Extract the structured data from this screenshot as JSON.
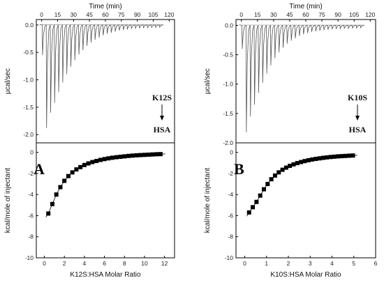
{
  "chart_data": [
    {
      "type": "line",
      "panel": "A",
      "title": "",
      "top": {
        "xlabel": "Time (min)",
        "ylabel": "µcal/sec",
        "xlim": [
          -5,
          125
        ],
        "ylim": [
          -2.15,
          0.1
        ],
        "xticks": [
          0,
          15,
          30,
          45,
          60,
          75,
          90,
          105,
          120
        ],
        "yticks": [
          0.0,
          -0.5,
          -1.0,
          -1.5,
          -2.0
        ],
        "ytick_labels": [
          "0.0",
          "-0.5",
          "-1.0",
          "-1.5",
          "-2.0"
        ],
        "injections": {
          "count": 30,
          "first_time_min": 0.5,
          "interval_min": 3.8,
          "peak_values": [
            -0.55,
            -1.88,
            -1.6,
            -1.42,
            -1.22,
            -1.05,
            -0.9,
            -0.76,
            -0.64,
            -0.54,
            -0.46,
            -0.38,
            -0.32,
            -0.27,
            -0.23,
            -0.19,
            -0.16,
            -0.14,
            -0.12,
            -0.1,
            -0.09,
            -0.08,
            -0.07,
            -0.06,
            -0.055,
            -0.05,
            -0.05,
            -0.045,
            -0.045,
            -0.04
          ]
        },
        "annotation_top": "K12S",
        "annotation_bottom": "HSA"
      },
      "bottom": {
        "xlabel": "K12S:HSA Molar Ratio",
        "ylabel": "kcal/mole of injectant",
        "xlim": [
          -0.8,
          13
        ],
        "ylim": [
          -10,
          0.9
        ],
        "xticks": [
          0,
          2,
          4,
          6,
          8,
          10,
          12
        ],
        "yticks": [
          0,
          -2,
          -4,
          -6,
          -8,
          -10
        ],
        "x": [
          0.4,
          0.8,
          1.2,
          1.6,
          2.0,
          2.4,
          2.8,
          3.2,
          3.6,
          4.0,
          4.4,
          4.8,
          5.2,
          5.6,
          6.0,
          6.4,
          6.8,
          7.2,
          7.6,
          8.0,
          8.4,
          8.8,
          9.2,
          9.6,
          10.0,
          10.4,
          10.8,
          11.2,
          11.6
        ],
        "y": [
          -5.8,
          -4.9,
          -4.0,
          -3.3,
          -2.7,
          -2.25,
          -1.9,
          -1.62,
          -1.4,
          -1.2,
          -1.05,
          -0.92,
          -0.82,
          -0.72,
          -0.64,
          -0.57,
          -0.51,
          -0.46,
          -0.42,
          -0.38,
          -0.34,
          -0.31,
          -0.28,
          -0.26,
          -0.24,
          -0.22,
          -0.2,
          -0.18,
          -0.17
        ]
      }
    },
    {
      "type": "line",
      "panel": "B",
      "title": "",
      "top": {
        "xlabel": "Time (min)",
        "ylabel": "µcal/sec",
        "xlim": [
          -5,
          125
        ],
        "ylim": [
          -2.0,
          0.1
        ],
        "xticks": [
          0,
          15,
          30,
          45,
          60,
          75,
          90,
          105,
          120
        ],
        "yticks": [
          0.0,
          -0.5,
          -1.0,
          -1.5,
          -2.0
        ],
        "ytick_labels": [
          "0.0",
          "-0.5",
          "-1.0",
          "-1.5",
          "-2.0"
        ],
        "injections": {
          "count": 30,
          "first_time_min": 0.5,
          "interval_min": 3.8,
          "peak_values": [
            -0.4,
            -1.82,
            -1.55,
            -1.35,
            -1.15,
            -0.98,
            -0.82,
            -0.68,
            -0.56,
            -0.46,
            -0.38,
            -0.31,
            -0.26,
            -0.22,
            -0.18,
            -0.15,
            -0.13,
            -0.11,
            -0.1,
            -0.09,
            -0.08,
            -0.07,
            -0.065,
            -0.06,
            -0.055,
            -0.05,
            -0.05,
            -0.045,
            -0.045,
            -0.04
          ]
        },
        "annotation_top": "K10S",
        "annotation_bottom": "HSA"
      },
      "bottom": {
        "xlabel": "K10S:HSA Molar Ratio",
        "ylabel": "kcal/mole of injectant",
        "xlim": [
          -0.4,
          6
        ],
        "ylim": [
          -10,
          0.9
        ],
        "xticks": [
          0,
          1,
          2,
          3,
          4,
          5,
          6
        ],
        "yticks": [
          0,
          -2,
          -4,
          -6,
          -8,
          -10
        ],
        "x": [
          0.2,
          0.37,
          0.54,
          0.71,
          0.88,
          1.05,
          1.22,
          1.39,
          1.56,
          1.73,
          1.9,
          2.07,
          2.24,
          2.41,
          2.58,
          2.75,
          2.92,
          3.09,
          3.26,
          3.43,
          3.6,
          3.77,
          3.94,
          4.11,
          4.28,
          4.45,
          4.62,
          4.79,
          4.96
        ],
        "y": [
          -5.7,
          -5.2,
          -4.7,
          -4.1,
          -3.5,
          -3.0,
          -2.55,
          -2.2,
          -1.9,
          -1.65,
          -1.45,
          -1.28,
          -1.14,
          -1.02,
          -0.92,
          -0.83,
          -0.75,
          -0.68,
          -0.62,
          -0.57,
          -0.52,
          -0.48,
          -0.44,
          -0.41,
          -0.38,
          -0.36,
          -0.34,
          -0.32,
          -0.3
        ]
      }
    }
  ]
}
